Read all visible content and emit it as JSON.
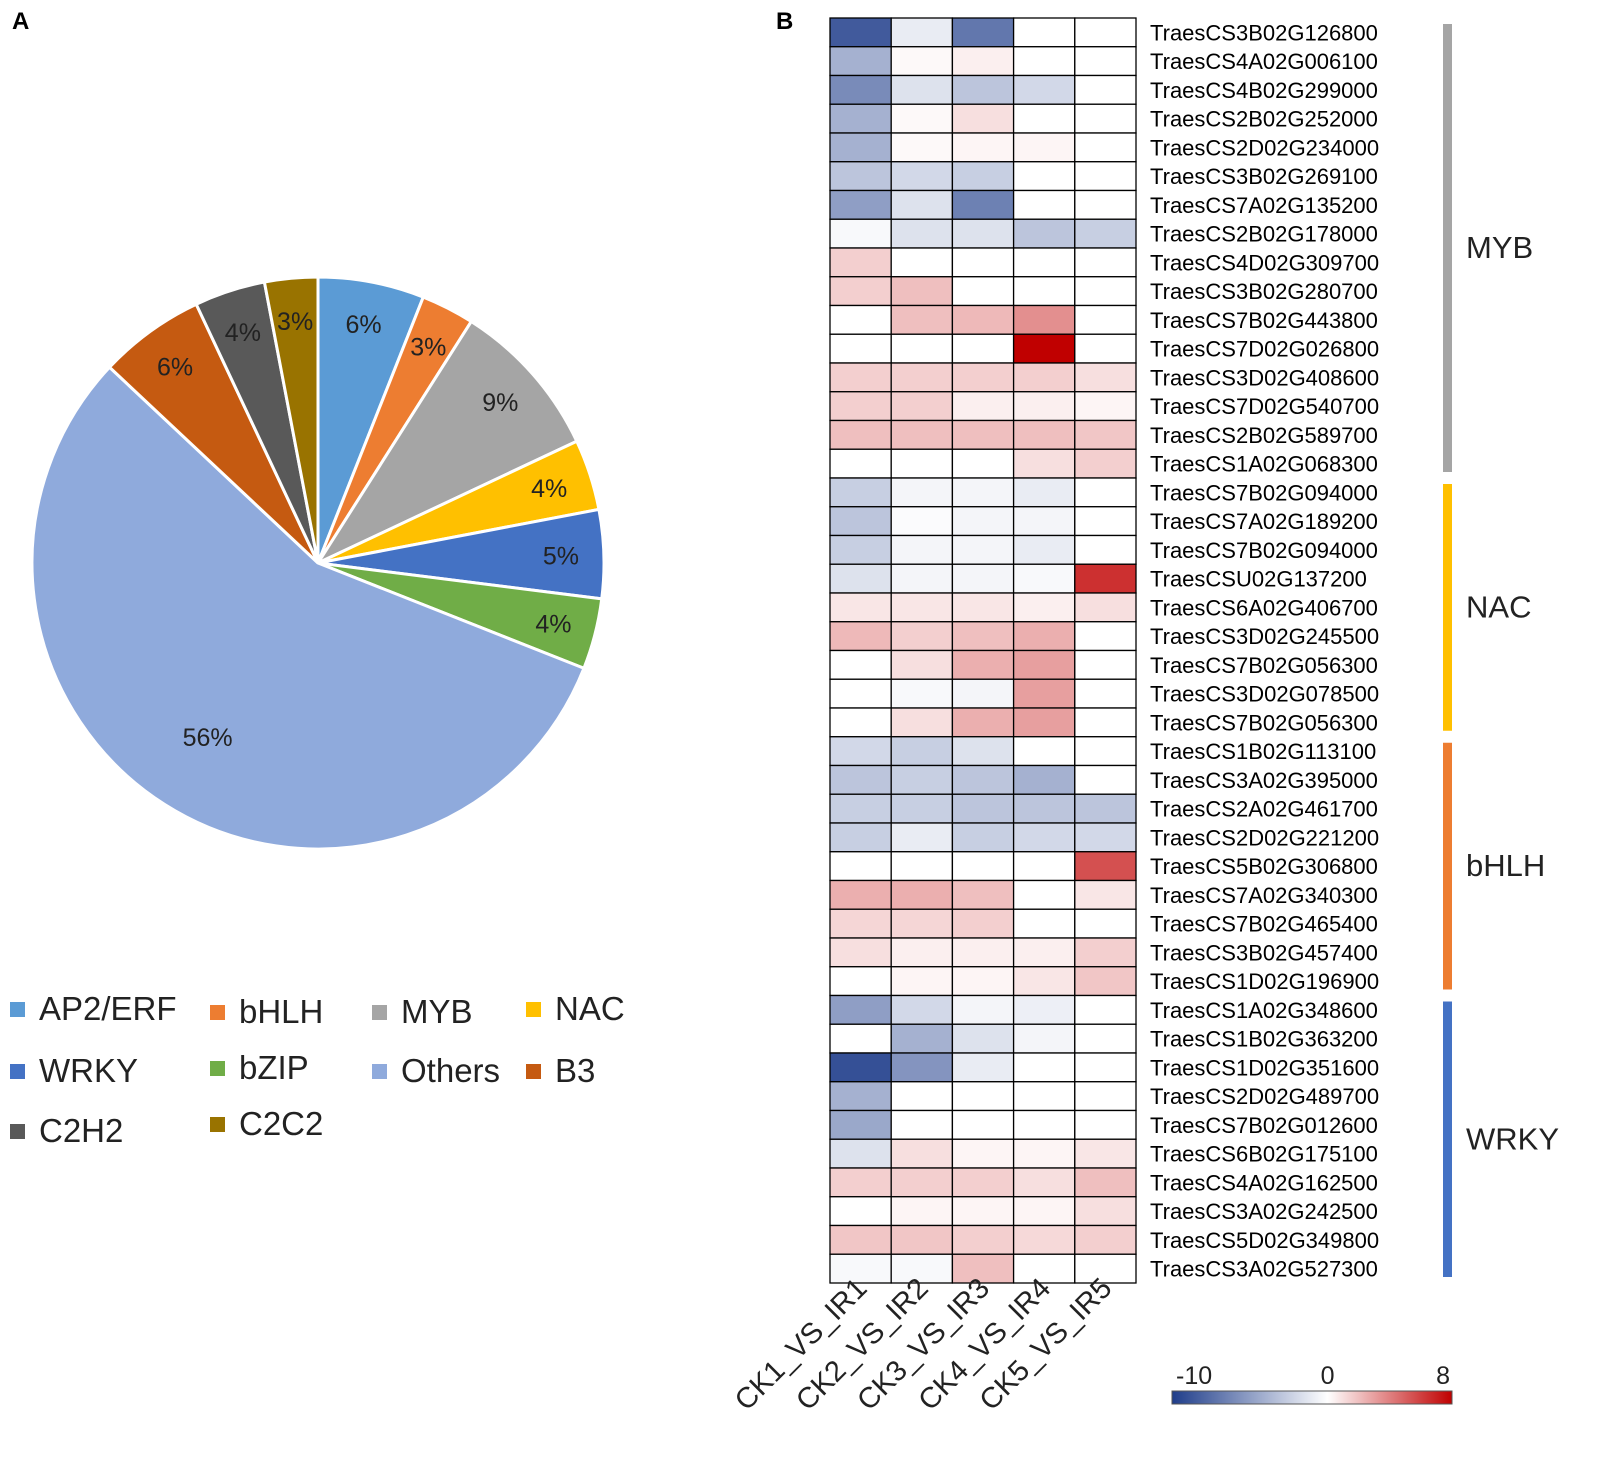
{
  "panels": {
    "a": "A",
    "b": "B"
  },
  "colors": {
    "AP2/ERF": "#5B9BD5",
    "bHLH": "#ED7D31",
    "MYB": "#A5A5A5",
    "NAC": "#FFC000",
    "WRKY": "#4472C4",
    "bZIP": "#70AD47",
    "Others": "#8FAADC",
    "B3": "#C55A11",
    "C2H2": "#595959",
    "C2C2": "#997300"
  },
  "legend": {
    "items": [
      {
        "key": "AP2/ERF",
        "label": "AP2/ERF"
      },
      {
        "key": "bHLH",
        "label": "bHLH"
      },
      {
        "key": "MYB",
        "label": "MYB"
      },
      {
        "key": "NAC",
        "label": "NAC"
      },
      {
        "key": "WRKY",
        "label": "WRKY"
      },
      {
        "key": "bZIP",
        "label": "bZIP"
      },
      {
        "key": "Others",
        "label": "Others"
      },
      {
        "key": "B3",
        "label": "B3"
      },
      {
        "key": "C2H2",
        "label": "C2H2"
      },
      {
        "key": "C2C2",
        "label": "C2C2"
      }
    ]
  },
  "chart_data": [
    {
      "type": "pie",
      "title": "",
      "slices": [
        {
          "key": "AP2/ERF",
          "value": 6,
          "label": "6%"
        },
        {
          "key": "bHLH",
          "value": 3,
          "label": "3%"
        },
        {
          "key": "MYB",
          "value": 9,
          "label": "9%"
        },
        {
          "key": "NAC",
          "value": 4,
          "label": "4%"
        },
        {
          "key": "WRKY",
          "value": 5,
          "label": "5%"
        },
        {
          "key": "bZIP",
          "value": 4,
          "label": "4%"
        },
        {
          "key": "Others",
          "value": 56,
          "label": "56%"
        },
        {
          "key": "B3",
          "value": 6,
          "label": "6%"
        },
        {
          "key": "C2H2",
          "value": 4,
          "label": "4%"
        },
        {
          "key": "C2C2",
          "value": 3,
          "label": "3%"
        }
      ]
    },
    {
      "type": "heatmap",
      "columns": [
        "CK1_VS_IR1",
        "CK2_VS_IR2",
        "CK3_VS_IR3",
        "CK4_VS_IR4",
        "CK5_VS_IR5"
      ],
      "rows": [
        {
          "gene": "TraesCS3B02G126800",
          "values": [
            -8.5,
            -1,
            -7,
            0,
            0
          ]
        },
        {
          "gene": "TraesCS4A02G006100",
          "values": [
            -4,
            0.2,
            0.5,
            0,
            0
          ]
        },
        {
          "gene": "TraesCS4B02G299000",
          "values": [
            -6,
            -1.5,
            -3,
            -2,
            0
          ]
        },
        {
          "gene": "TraesCS2B02G252000",
          "values": [
            -4,
            0.2,
            1,
            0,
            0
          ]
        },
        {
          "gene": "TraesCS2D02G234000",
          "values": [
            -4,
            0.2,
            0.3,
            0.3,
            0
          ]
        },
        {
          "gene": "TraesCS3B02G269100",
          "values": [
            -3,
            -2,
            -2.5,
            0,
            0
          ]
        },
        {
          "gene": "TraesCS7A02G135200",
          "values": [
            -5,
            -1.5,
            -6.5,
            0,
            0
          ]
        },
        {
          "gene": "TraesCS2B02G178000",
          "values": [
            -0.3,
            -1.5,
            -1.5,
            -3,
            -2.5
          ]
        },
        {
          "gene": "TraesCS4D02G309700",
          "values": [
            1.5,
            0,
            0,
            0,
            0
          ]
        },
        {
          "gene": "TraesCS3B02G280700",
          "values": [
            1.5,
            2,
            0,
            0,
            0
          ]
        },
        {
          "gene": "TraesCS7B02G443800",
          "values": [
            0,
            2,
            2.2,
            3.5,
            0
          ]
        },
        {
          "gene": "TraesCS7D02G026800",
          "values": [
            0,
            0,
            0,
            8,
            0
          ]
        },
        {
          "gene": "TraesCS3D02G408600",
          "values": [
            1.5,
            1.5,
            1.5,
            1.5,
            1
          ]
        },
        {
          "gene": "TraesCS7D02G540700",
          "values": [
            1.5,
            1.5,
            0.5,
            0.5,
            0.3
          ]
        },
        {
          "gene": "TraesCS2B02G589700",
          "values": [
            2,
            2,
            2,
            2,
            1.8
          ]
        },
        {
          "gene": "TraesCS1A02G068300",
          "values": [
            0,
            0,
            0,
            1,
            1.5
          ]
        },
        {
          "gene": "TraesCS7B02G094000",
          "values": [
            -2.5,
            -0.5,
            -0.5,
            -1,
            0
          ]
        },
        {
          "gene": "TraesCS7A02G189200",
          "values": [
            -3,
            -0.2,
            -0.5,
            -0.5,
            0
          ]
        },
        {
          "gene": "TraesCS7B02G094000",
          "values": [
            -2.5,
            -0.5,
            -0.5,
            -1,
            0
          ]
        },
        {
          "gene": "TraesCSU02G137200",
          "values": [
            -1.5,
            -0.5,
            -0.5,
            -0.3,
            6.5
          ]
        },
        {
          "gene": "TraesCS6A02G406700",
          "values": [
            0.8,
            0.8,
            0.8,
            0.5,
            1
          ]
        },
        {
          "gene": "TraesCS3D02G245500",
          "values": [
            2.2,
            1.5,
            2,
            2.5,
            0
          ]
        },
        {
          "gene": "TraesCS7B02G056300",
          "values": [
            0,
            1,
            2.5,
            3,
            0
          ]
        },
        {
          "gene": "TraesCS3D02G078500",
          "values": [
            0,
            -0.3,
            -0.5,
            3,
            0
          ]
        },
        {
          "gene": "TraesCS7B02G056300",
          "values": [
            0,
            1,
            2.5,
            3,
            0
          ]
        },
        {
          "gene": "TraesCS1B02G113100",
          "values": [
            -2,
            -2.5,
            -1.5,
            0,
            0
          ]
        },
        {
          "gene": "TraesCS3A02G395000",
          "values": [
            -3,
            -2.5,
            -3,
            -4,
            0
          ]
        },
        {
          "gene": "TraesCS2A02G461700",
          "values": [
            -2.5,
            -2.5,
            -3,
            -3,
            -3
          ]
        },
        {
          "gene": "TraesCS2D02G221200",
          "values": [
            -2.5,
            -1,
            -2.5,
            -2,
            -2
          ]
        },
        {
          "gene": "TraesCS5B02G306800",
          "values": [
            0,
            0,
            0,
            0,
            5.5
          ]
        },
        {
          "gene": "TraesCS7A02G340300",
          "values": [
            2.5,
            2.5,
            2,
            0,
            0.8
          ]
        },
        {
          "gene": "TraesCS7B02G465400",
          "values": [
            1.3,
            1.3,
            1.5,
            0,
            0
          ]
        },
        {
          "gene": "TraesCS3B02G457400",
          "values": [
            1,
            0.5,
            0.5,
            0.5,
            1.5
          ]
        },
        {
          "gene": "TraesCS1D02G196900",
          "values": [
            0,
            0.3,
            0.3,
            0.8,
            1.8
          ]
        },
        {
          "gene": "TraesCS1A02G348600",
          "values": [
            -5,
            -2,
            -0.5,
            -0.8,
            0
          ]
        },
        {
          "gene": "TraesCS1B02G363200",
          "values": [
            0,
            -4,
            -1.5,
            -0.5,
            0
          ]
        },
        {
          "gene": "TraesCS1D02G351600",
          "values": [
            -9,
            -5.5,
            -1,
            0,
            0
          ]
        },
        {
          "gene": "TraesCS2D02G489700",
          "values": [
            -4,
            0,
            0,
            0,
            0
          ]
        },
        {
          "gene": "TraesCS7B02G012600",
          "values": [
            -4.5,
            0,
            0,
            0,
            0
          ]
        },
        {
          "gene": "TraesCS6B02G175100",
          "values": [
            -1.5,
            1,
            0.3,
            0.3,
            0.8
          ]
        },
        {
          "gene": "TraesCS4A02G162500",
          "values": [
            1.5,
            1.5,
            1.5,
            1,
            2
          ]
        },
        {
          "gene": "TraesCS3A02G242500",
          "values": [
            0,
            0.3,
            0.3,
            0.3,
            1
          ]
        },
        {
          "gene": "TraesCS5D02G349800",
          "values": [
            1.8,
            1.8,
            1.5,
            1.2,
            1.5
          ]
        },
        {
          "gene": "TraesCS3A02G527300",
          "values": [
            -0.3,
            -0.3,
            2,
            0,
            0
          ]
        }
      ],
      "groups": [
        {
          "label": "MYB",
          "start": 0,
          "end": 15,
          "color": "#A5A5A5"
        },
        {
          "label": "NAC",
          "start": 16,
          "end": 24,
          "color": "#FFC000"
        },
        {
          "label": "bHLH",
          "start": 25,
          "end": 33,
          "color": "#ED7D31"
        },
        {
          "label": "WRKY",
          "start": 34,
          "end": 43,
          "color": "#4472C4"
        }
      ],
      "scale": {
        "min": -10,
        "mid": 0,
        "max": 8,
        "min_label": "-10",
        "mid_label": "0",
        "max_label": "8",
        "min_color": "#1F3D8A",
        "mid_color": "#FFFFFF",
        "max_color": "#C00000"
      }
    }
  ]
}
